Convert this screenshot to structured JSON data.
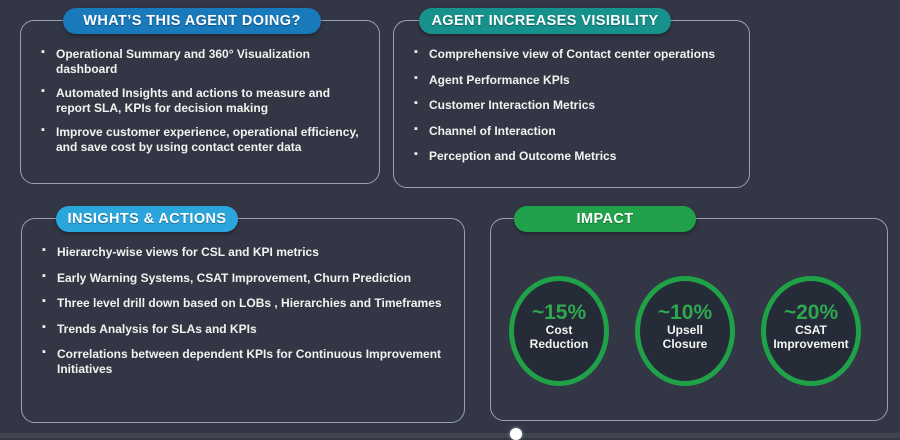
{
  "page": {
    "background": "#333745",
    "panel_border": "#9aa0ac"
  },
  "panels": {
    "doing": {
      "title": "WHAT’S THIS AGENT DOING?",
      "accent": "#1879bb",
      "bullets": [
        "Operational Summary and 360° Visualization dashboard",
        "Automated Insights and actions to measure and report SLA, KPIs for decision making",
        "Improve customer experience, operational efficiency, and save cost by using contact center data"
      ]
    },
    "visibility": {
      "title": "AGENT INCREASES VISIBILITY",
      "accent": "#17918c",
      "bullets": [
        "Comprehensive view of Contact center operations",
        "Agent Performance KPIs",
        "Customer Interaction Metrics",
        "Channel of Interaction",
        "Perception and Outcome Metrics"
      ]
    },
    "insights": {
      "title": "INSIGHTS & ACTIONS",
      "accent": "#2ba6dd",
      "bullets": [
        "Hierarchy-wise views for CSL and KPI metrics",
        "Early Warning Systems, CSAT Improvement, Churn Prediction",
        "Three level drill down based on LOBs , Hierarchies and Timeframes",
        "Trends Analysis for SLAs and KPIs",
        "Correlations between dependent KPIs for Continuous Improvement Initiatives"
      ]
    },
    "impact": {
      "title": "IMPACT",
      "accent": "#21a24a",
      "ring_color": "#1fa148",
      "value_color": "#2ea84f",
      "metrics": [
        {
          "value": "~15%",
          "label": "Cost Reduction"
        },
        {
          "value": "~10%",
          "label": "Upsell Closure"
        },
        {
          "value": "~20%",
          "label": "CSAT Improvement"
        }
      ]
    }
  }
}
